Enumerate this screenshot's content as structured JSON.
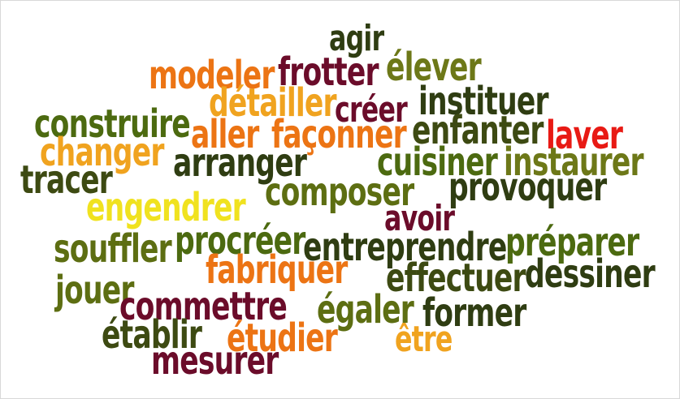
{
  "colors": {
    "dark_green": "#2f3d12",
    "olive": "#5d6e12",
    "olive_light": "#6d7818",
    "lime": "#4c6a10",
    "orange": "#ec7414",
    "amber": "#f0a31f",
    "yellow": "#f0e21f",
    "maroon": "#6b0c2a",
    "red": "#e81a14",
    "dark_olive": "#3d4a12"
  },
  "words": [
    "agir",
    "modeler",
    "frotter",
    "élever",
    "détailler",
    "créer",
    "instituer",
    "construire",
    "aller",
    "façonner",
    "enfanter",
    "laver",
    "changer",
    "arranger",
    "cuisiner",
    "instaurer",
    "tracer",
    "composer",
    "provoquer",
    "engendrer",
    "avoir",
    "souffler",
    "procréer",
    "entreprendre",
    "préparer",
    "fabriquer",
    "jouer",
    "effectuer",
    "dessiner",
    "commettre",
    "égaler",
    "former",
    "établir",
    "étudier",
    "être",
    "mesurer"
  ]
}
